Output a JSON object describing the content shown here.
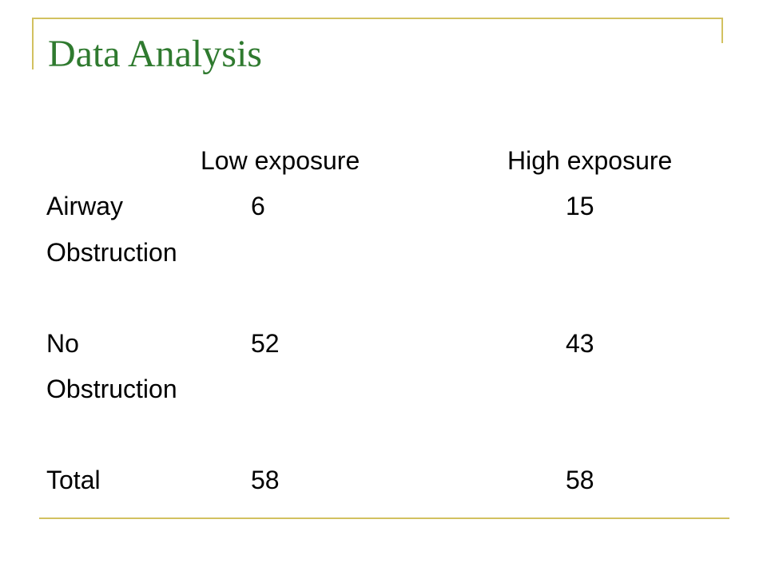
{
  "slide": {
    "title": "Data Analysis",
    "accent_color": "#d2c160",
    "title_color": "#2f7a2f"
  },
  "table": {
    "columns": [
      "Low exposure",
      "High exposure"
    ],
    "rows": [
      {
        "label_line1": "Airway",
        "label_line2": "Obstruction",
        "values": [
          "6",
          "15"
        ]
      },
      {
        "label_line1": "No",
        "label_line2": "Obstruction",
        "values": [
          "52",
          "43"
        ]
      },
      {
        "label_line1": "Total",
        "label_line2": "",
        "values": [
          "58",
          "58"
        ]
      }
    ]
  }
}
